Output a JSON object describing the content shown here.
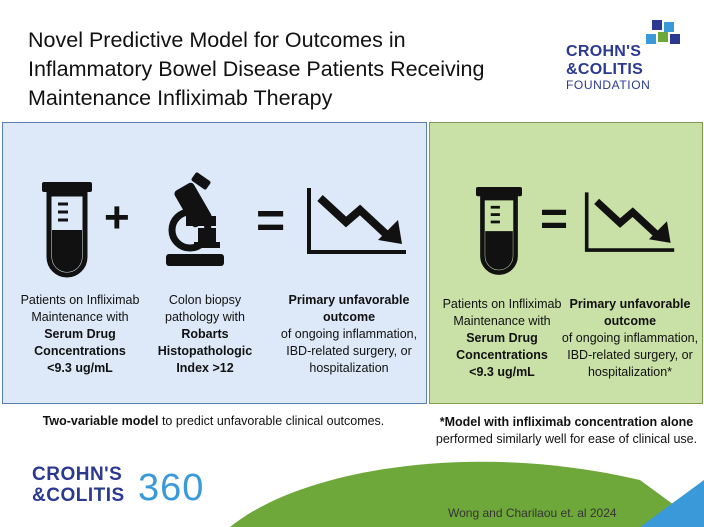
{
  "title": {
    "line1": "Novel Predictive Model for Outcomes in",
    "line2": "Inflammatory Bowel Disease Patients Receiving",
    "line3": "Maintenance Infliximab Therapy"
  },
  "logo_top": {
    "line1": "CROHN'S",
    "line2": "&COLITIS",
    "line3": "FOUNDATION"
  },
  "left_panel": {
    "operator_plus": "+",
    "operator_equals": "=",
    "tube_caption": {
      "l1": "Patients on Infliximab",
      "l2": "Maintenance with",
      "l3": "Serum Drug",
      "l4": "Concentrations",
      "l5": "<9.3 ug/mL"
    },
    "biopsy_caption": {
      "l1": "Colon biopsy",
      "l2": "pathology with",
      "l3": "Robarts",
      "l4": "Histopathologic",
      "l5": "Index >12"
    },
    "outcome_caption": {
      "l1": "Primary unfavorable",
      "l2": "outcome",
      "l3": "of ongoing inflammation,",
      "l4": "IBD-related surgery, or",
      "l5": "hospitalization"
    }
  },
  "right_panel": {
    "operator_equals": "=",
    "tube_caption": {
      "l1": "Patients on Infliximab",
      "l2": "Maintenance with",
      "l3": "Serum Drug",
      "l4": "Concentrations",
      "l5": "<9.3 ug/mL"
    },
    "outcome_caption": {
      "l1": "Primary unfavorable",
      "l2": "outcome",
      "l3": "of ongoing inflammation,",
      "l4": "IBD-related surgery, or",
      "l5": "hospitalization*"
    }
  },
  "bottom_left": {
    "bold": "Two-variable model",
    "rest": " to predict unfavorable clinical outcomes."
  },
  "bottom_right": {
    "l1_pre": "*Model with ",
    "l1_bold": "infliximab concentration alone",
    "l2": "performed similarly well for ease of clinical use."
  },
  "logo_bottom": {
    "line1": "CROHN'S",
    "line2": "&COLITIS",
    "number": "360"
  },
  "citation": "Wong and Charilaou et. al 2024",
  "colors": {
    "brand_navy": "#2b3990",
    "brand_blue": "#3a9ad9",
    "panel_blue": "#dde9f8",
    "panel_green": "#c9e1a6",
    "hill_green": "#6fa83a"
  },
  "icons": [
    "test-tube-icon",
    "microscope-icon",
    "downtrend-chart-icon"
  ]
}
